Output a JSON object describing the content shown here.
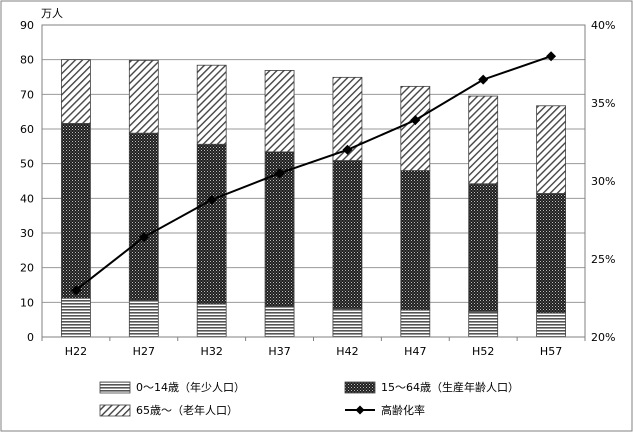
{
  "chart_data": {
    "type": "bar",
    "stacked": true,
    "categories": [
      "H22",
      "H27",
      "H32",
      "H37",
      "H42",
      "H47",
      "H52",
      "H57"
    ],
    "y_unit": "万人",
    "ylim": [
      0,
      90
    ],
    "yticks": [
      "0",
      "10",
      "20",
      "30",
      "40",
      "50",
      "60",
      "70",
      "80",
      "90"
    ],
    "y2lim": [
      20,
      40
    ],
    "y2ticks": [
      "20%",
      "25%",
      "30%",
      "35%",
      "40%"
    ],
    "grid": "horizontal",
    "legend_position": "bottom",
    "series": [
      {
        "name": "0～14歳（年少人口）",
        "kind": "bar",
        "pattern": "horizontal-lines",
        "values": [
          11.2,
          10.6,
          9.6,
          8.8,
          8.2,
          7.8,
          7.4,
          7.0
        ]
      },
      {
        "name": "15～64歳（生産年齢人口）",
        "kind": "bar",
        "pattern": "dark-dots",
        "values": [
          50.4,
          48.2,
          46.0,
          44.6,
          42.7,
          40.2,
          36.8,
          34.4
        ]
      },
      {
        "name": "65歳～（老年人口）",
        "kind": "bar",
        "pattern": "diagonal-hatch",
        "values": [
          18.4,
          21.0,
          22.8,
          23.5,
          24.0,
          24.3,
          25.3,
          25.3
        ]
      },
      {
        "name": "高齢化率",
        "kind": "line",
        "axis": "right",
        "marker": "diamond",
        "values": [
          23.0,
          26.4,
          28.8,
          30.5,
          32.0,
          33.9,
          36.5,
          38.0
        ]
      }
    ],
    "colors": {
      "frame": "#808080",
      "grid": "#9a9a9a",
      "bar_edge": "#404040",
      "line": "#000000"
    }
  }
}
